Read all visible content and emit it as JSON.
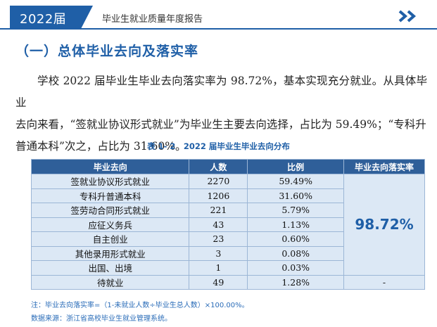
{
  "header": {
    "year_label": "2022届",
    "report_title": "毕业生就业质量年度报告",
    "arrows_icon": "double-chevron-right-icon",
    "accent": "#1f5fa7"
  },
  "section_title": "（一）总体毕业去向及落实率",
  "paragraph": {
    "line1": "学校 2022 届毕业生毕业去向落实率为 98.72%，基本实现充分就业。从具体毕业",
    "line2": "去向来看，“签就业协议形式就业”为毕业生主要去向选择，占比为 59.49%；“专科升",
    "line3": "普通本科”次之，占比为 31.60%。"
  },
  "table": {
    "caption": "表 1- 2　2022 届毕业生毕业去向分布",
    "headers": [
      "毕业去向",
      "人数",
      "比例",
      "毕业去向落实率"
    ],
    "rows": [
      {
        "dest": "签就业协议形式就业",
        "count": "2270",
        "ratio": "59.49%"
      },
      {
        "dest": "专科升普通本科",
        "count": "1206",
        "ratio": "31.60%"
      },
      {
        "dest": "签劳动合同形式就业",
        "count": "221",
        "ratio": "5.79%"
      },
      {
        "dest": "应征义务兵",
        "count": "43",
        "ratio": "1.13%"
      },
      {
        "dest": "自主创业",
        "count": "23",
        "ratio": "0.60%"
      },
      {
        "dest": "其他录用形式就业",
        "count": "3",
        "ratio": "0.08%"
      },
      {
        "dest": "出国、出境",
        "count": "1",
        "ratio": "0.03%"
      },
      {
        "dest": "待就业",
        "count": "49",
        "ratio": "1.28%"
      }
    ],
    "placement_rate": "98.72%",
    "unemployed_rate": "-"
  },
  "notes": {
    "note1": "注：毕业去向落实率=（1-未就业人数÷毕业生总人数）×100.00%。",
    "note2": "数据来源：浙江省高校毕业生就业管理系统。"
  }
}
